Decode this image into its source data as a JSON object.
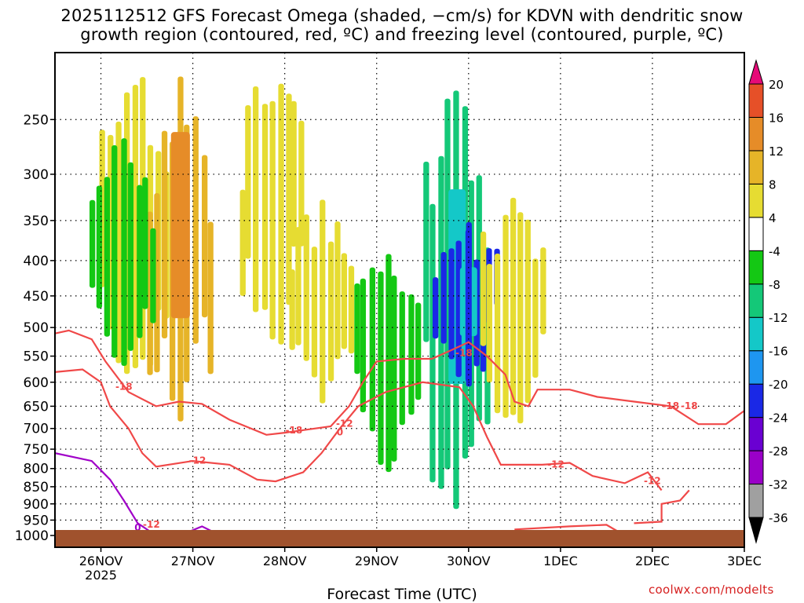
{
  "title": {
    "line1": "2025112512 GFS Forecast Omega (shaded, −cm/s) for KDVN with dendritic snow",
    "line2": "growth region (contoured, red, ºC) and freezing level (contoured, purple, ºC)"
  },
  "credit": "coolwx.com/modelts",
  "chart_data": {
    "type": "heatmap",
    "xlabel": "Forecast Time (UTC)",
    "ylabel": "",
    "x_range": [
      "2025-11-25 12Z",
      "2025-12-03 00Z"
    ],
    "x_ticks": [
      {
        "value": "2025-11-26 00Z",
        "label": "26NOV",
        "sublabel": "2025"
      },
      {
        "value": "2025-11-27 00Z",
        "label": "27NOV",
        "sublabel": ""
      },
      {
        "value": "2025-11-28 00Z",
        "label": "28NOV",
        "sublabel": ""
      },
      {
        "value": "2025-11-29 00Z",
        "label": "29NOV",
        "sublabel": ""
      },
      {
        "value": "2025-11-30 00Z",
        "label": "30NOV",
        "sublabel": ""
      },
      {
        "value": "2025-12-01 00Z",
        "label": "1DEC",
        "sublabel": ""
      },
      {
        "value": "2025-12-02 00Z",
        "label": "2DEC",
        "sublabel": ""
      },
      {
        "value": "2025-12-03 00Z",
        "label": "3DEC",
        "sublabel": ""
      }
    ],
    "y_scale": "log",
    "y_inverted": true,
    "y_range": [
      1040,
      200
    ],
    "y_ticks": [
      250,
      300,
      350,
      400,
      450,
      500,
      550,
      600,
      650,
      700,
      750,
      800,
      850,
      900,
      950,
      1000
    ],
    "grid": true,
    "colorbar": {
      "levels": [
        -36,
        -32,
        -28,
        -24,
        -20,
        -16,
        -12,
        -8,
        -4,
        4,
        8,
        12,
        16,
        20
      ],
      "colors": [
        "#000000",
        "#a0a0a0",
        "#9a00c8",
        "#6a00d2",
        "#1a28e6",
        "#1e96f0",
        "#14c8c8",
        "#14c878",
        "#14c814",
        "#ffffff",
        "#e6dc32",
        "#e6b428",
        "#e68c28",
        "#e65028",
        "#e60a78"
      ]
    },
    "omega_regions": [
      {
        "center_x": "2025-11-26 09Z",
        "top_p": 210,
        "bottom_p": 620,
        "value": 6
      },
      {
        "center_x": "2025-11-26 21Z",
        "top_p": 220,
        "bottom_p": 680,
        "value": 10
      },
      {
        "center_x": "2025-11-26 06Z",
        "top_p": 265,
        "bottom_p": 570,
        "value": -6
      },
      {
        "center_x": "2025-11-27 21Z",
        "top_p": 210,
        "bottom_p": 540,
        "value": 6
      },
      {
        "center_x": "2025-11-28 10Z",
        "top_p": 330,
        "bottom_p": 620,
        "value": 5
      },
      {
        "center_x": "2025-11-29 03Z",
        "top_p": 395,
        "bottom_p": 800,
        "value": -7
      },
      {
        "center_x": "2025-11-29 21Z",
        "top_p": 220,
        "bottom_p": 930,
        "value": -10
      },
      {
        "center_x": "2025-11-30 00Z",
        "top_p": 360,
        "bottom_p": 600,
        "value": -22
      },
      {
        "center_x": "2025-11-30 12Z",
        "top_p": 320,
        "bottom_p": 700,
        "value": 5
      }
    ],
    "contours": [
      {
        "series": "dendritic growth region",
        "color": "#f04848",
        "levels": [
          -12,
          -18
        ]
      },
      {
        "series": "freezing level",
        "color": "#a000c8",
        "levels": [
          0
        ]
      }
    ],
    "contour_labels": [
      "-18",
      "-18",
      "-18",
      "-18",
      "-12",
      "-12",
      "-12",
      "-12",
      "-12",
      "0",
      "0",
      "-18"
    ]
  }
}
